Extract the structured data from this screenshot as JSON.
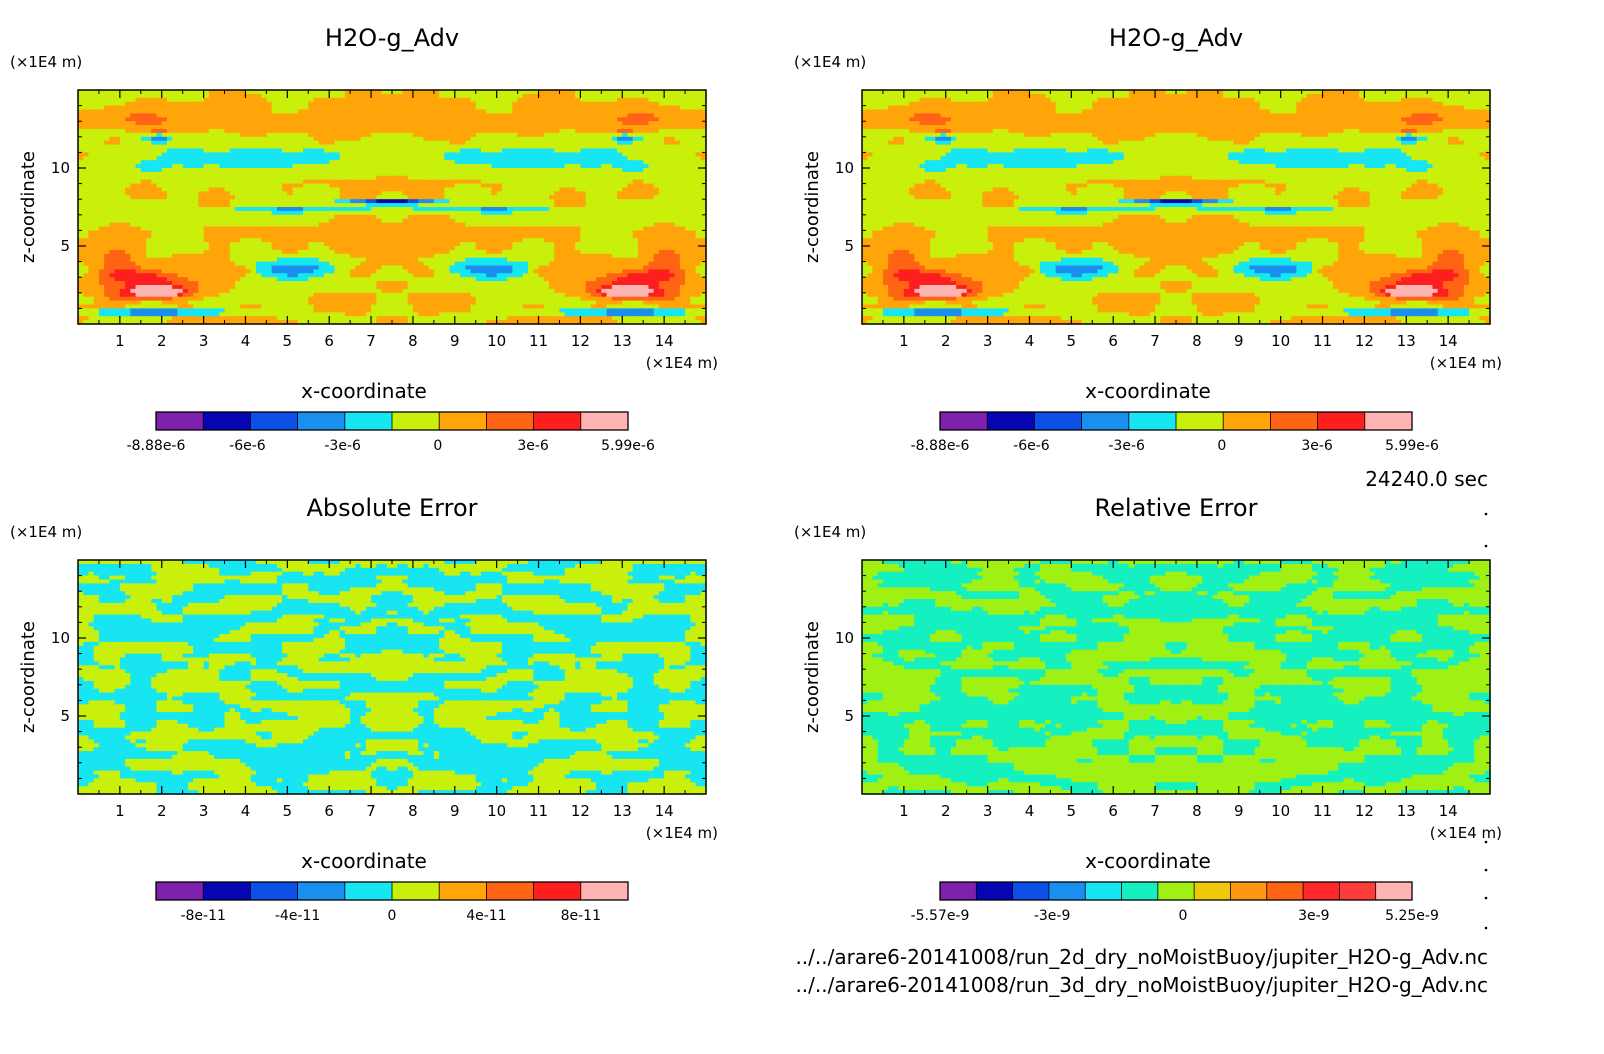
{
  "chart_data": [
    {
      "type": "heatmap",
      "title": "H2O-g_Adv",
      "xlabel": "x-coordinate",
      "ylabel": "z-coordinate",
      "x_unit": "(×1E4 m)",
      "y_unit": "(×1E4 m)",
      "xlim": [
        0,
        15
      ],
      "ylim": [
        0,
        15
      ],
      "x_ticks": [
        "1",
        "2",
        "3",
        "4",
        "5",
        "6",
        "7",
        "8",
        "9",
        "10",
        "11",
        "12",
        "13",
        "14"
      ],
      "y_ticks": [
        "5",
        "10"
      ],
      "colorbar": {
        "colors": [
          "#7f1fad",
          "#0505b4",
          "#0a4fe6",
          "#1a8ff0",
          "#17e6f2",
          "#c8f00a",
          "#ffa50a",
          "#ff6414",
          "#ff1e1e",
          "#ffb4b4"
        ],
        "labels": [
          "-8.88e-6",
          "-6e-6",
          "-3e-6",
          "0",
          "3e-6",
          "5.99e-6"
        ],
        "range": [
          -8.88e-06,
          5.99e-06
        ]
      }
    },
    {
      "type": "heatmap",
      "title": "H2O-g_Adv",
      "xlabel": "x-coordinate",
      "ylabel": "z-coordinate",
      "x_unit": "(×1E4 m)",
      "y_unit": "(×1E4 m)",
      "xlim": [
        0,
        15
      ],
      "ylim": [
        0,
        15
      ],
      "x_ticks": [
        "1",
        "2",
        "3",
        "4",
        "5",
        "6",
        "7",
        "8",
        "9",
        "10",
        "11",
        "12",
        "13",
        "14"
      ],
      "y_ticks": [
        "5",
        "10"
      ],
      "colorbar": {
        "colors": [
          "#7f1fad",
          "#0505b4",
          "#0a4fe6",
          "#1a8ff0",
          "#17e6f2",
          "#c8f00a",
          "#ffa50a",
          "#ff6414",
          "#ff1e1e",
          "#ffb4b4"
        ],
        "labels": [
          "-8.88e-6",
          "-6e-6",
          "-3e-6",
          "0",
          "3e-6",
          "5.99e-6"
        ],
        "range": [
          -8.88e-06,
          5.99e-06
        ]
      }
    },
    {
      "type": "heatmap",
      "title": "Absolute Error",
      "xlabel": "x-coordinate",
      "ylabel": "z-coordinate",
      "x_unit": "(×1E4 m)",
      "y_unit": "(×1E4 m)",
      "xlim": [
        0,
        15
      ],
      "ylim": [
        0,
        15
      ],
      "x_ticks": [
        "1",
        "2",
        "3",
        "4",
        "5",
        "6",
        "7",
        "8",
        "9",
        "10",
        "11",
        "12",
        "13",
        "14"
      ],
      "y_ticks": [
        "5",
        "10"
      ],
      "colorbar": {
        "colors": [
          "#7f1fad",
          "#0505b4",
          "#0a4fe6",
          "#1a8ff0",
          "#17e6f2",
          "#c8f00a",
          "#ffa50a",
          "#ff6414",
          "#ff1e1e",
          "#ffb4b4"
        ],
        "labels": [
          "-8e-11",
          "-4e-11",
          "0",
          "4e-11",
          "8e-11"
        ],
        "range": [
          -1e-10,
          1e-10
        ]
      }
    },
    {
      "type": "heatmap",
      "title": "Relative Error",
      "xlabel": "x-coordinate",
      "ylabel": "z-coordinate",
      "x_unit": "(×1E4 m)",
      "y_unit": "(×1E4 m)",
      "xlim": [
        0,
        15
      ],
      "ylim": [
        0,
        15
      ],
      "x_ticks": [
        "1",
        "2",
        "3",
        "4",
        "5",
        "6",
        "7",
        "8",
        "9",
        "10",
        "11",
        "12",
        "13",
        "14"
      ],
      "y_ticks": [
        "5",
        "10"
      ],
      "colorbar": {
        "colors": [
          "#7f1fad",
          "#0505b4",
          "#0a4fe6",
          "#1a8ff0",
          "#17e6f2",
          "#14f0c0",
          "#a0f014",
          "#f0c80a",
          "#ff9614",
          "#ff6414",
          "#ff2828",
          "#ff3c3c",
          "#ffb4b4"
        ],
        "labels": [
          "-5.57e-9",
          "-3e-9",
          "0",
          "3e-9",
          "5.25e-9"
        ],
        "range": [
          -5.57e-09,
          5.25e-09
        ]
      }
    }
  ],
  "time_label": "24240.0 sec",
  "files": [
    "../../arare6-20141008/run_2d_dry_noMoistBuoy/jupiter_H2O-g_Adv.nc",
    "../../arare6-20141008/run_3d_dry_noMoistBuoy/jupiter_H2O-g_Adv.nc"
  ],
  "palette": {
    "axis": "#000000",
    "background": "#ffffff"
  }
}
